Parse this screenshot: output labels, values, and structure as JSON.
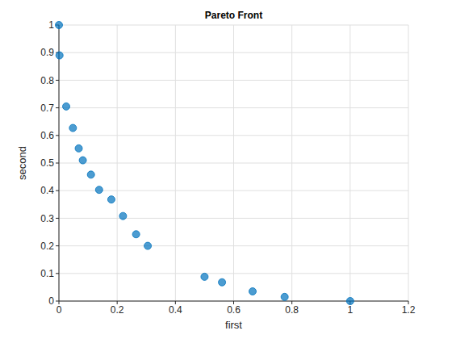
{
  "chart_data": {
    "type": "scatter",
    "title": "Pareto Front",
    "x_label": "first",
    "y_label": "second",
    "x": [
      0,
      0.002,
      0.025,
      0.048,
      0.068,
      0.082,
      0.11,
      0.138,
      0.18,
      0.22,
      0.265,
      0.305,
      0.5,
      0.56,
      0.665,
      0.775,
      1.0
    ],
    "values": [
      1.0,
      0.89,
      0.705,
      0.627,
      0.553,
      0.51,
      0.458,
      0.403,
      0.368,
      0.308,
      0.242,
      0.2,
      0.088,
      0.068,
      0.035,
      0.015,
      0.0
    ],
    "color": "#0072bd",
    "marker": "circle",
    "xlim": [
      0,
      1.2
    ],
    "xticks": [
      0,
      0.2,
      0.4,
      0.6,
      0.8,
      1,
      1.2
    ],
    "ylim": [
      0,
      1
    ],
    "yticks": [
      0,
      0.1,
      0.2,
      0.3,
      0.4,
      0.5,
      0.6,
      0.7,
      0.8,
      0.9,
      1
    ],
    "grid": true
  }
}
